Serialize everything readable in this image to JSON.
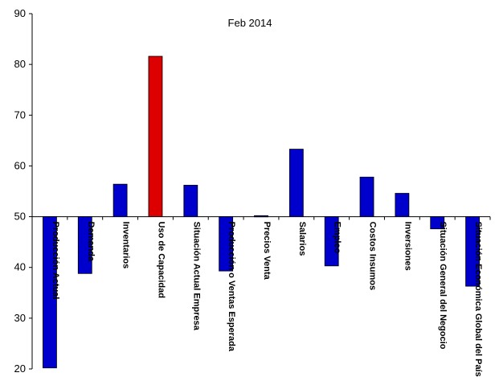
{
  "chart_data": {
    "type": "bar",
    "title": "Feb 2014",
    "baseline": 50,
    "ylim": [
      20,
      90
    ],
    "yticks": [
      20,
      30,
      40,
      50,
      60,
      70,
      80,
      90
    ],
    "grid": false,
    "categories": [
      "Producción Actual",
      "Demanda",
      "Inventarios",
      "Uso de Capacidad",
      "Situación Actual Empresa",
      "Producción o Ventas Esperada",
      "Precios Venta",
      "Salarios",
      "Empleo",
      "Costos Insumos",
      "Inversiones",
      "Situación General del Negocio",
      "Situación Económica Global del País"
    ],
    "values": [
      20.2,
      38.8,
      56.4,
      81.6,
      56.2,
      39.3,
      50.2,
      63.3,
      40.3,
      57.8,
      54.6,
      47.6,
      36.3
    ],
    "highlight_index": 3,
    "colors": {
      "bar": "#0000cc",
      "highlight": "#dd0000",
      "axis": "#000000"
    }
  }
}
